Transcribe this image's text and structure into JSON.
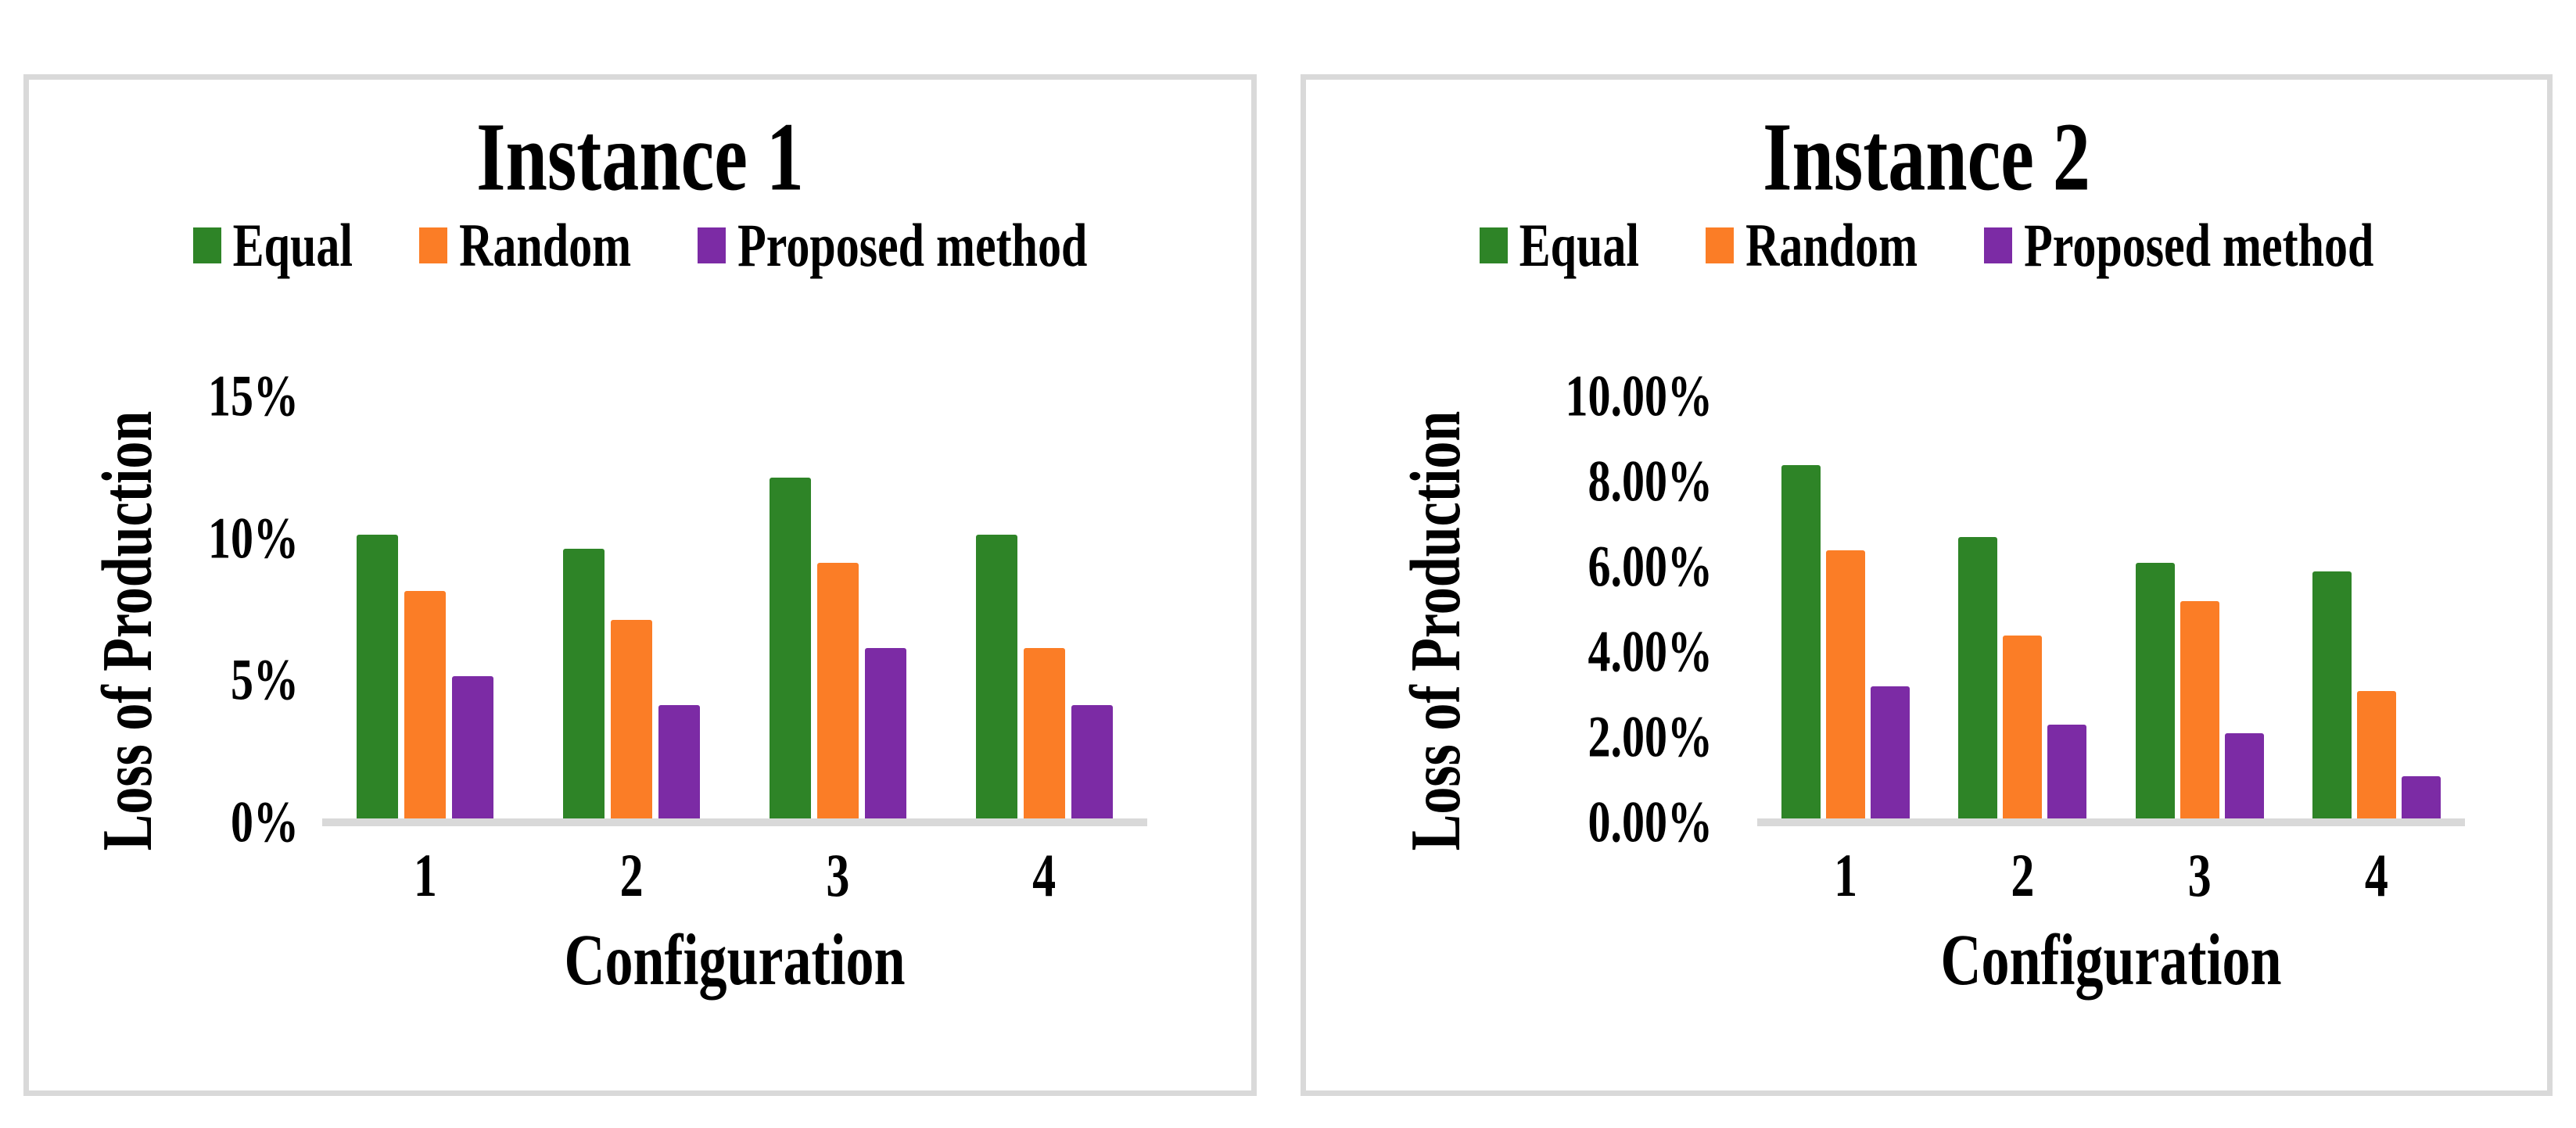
{
  "chart_data": [
    {
      "type": "bar",
      "title": "Instance 1",
      "xlabel": "Configuration",
      "ylabel": "Loss of Production",
      "categories": [
        "1",
        "2",
        "3",
        "4"
      ],
      "series": [
        {
          "name": "Equal",
          "color": "#2E8427",
          "values": [
            10,
            9.5,
            12,
            10
          ]
        },
        {
          "name": "Random",
          "color": "#FB7D26",
          "values": [
            8,
            7,
            9,
            6
          ]
        },
        {
          "name": "Proposed method",
          "color": "#7C2BA5",
          "values": [
            5,
            4,
            6,
            4
          ]
        }
      ],
      "y_max": 15,
      "ylim": [
        0,
        15
      ],
      "y_ticks": [
        {
          "label": "15%",
          "value": 15
        },
        {
          "label": "10%",
          "value": 10
        },
        {
          "label": "5%",
          "value": 5
        },
        {
          "label": "0%",
          "value": 0
        }
      ],
      "grid": "off",
      "legend_position": "top"
    },
    {
      "type": "bar",
      "title": "Instance 2",
      "xlabel": "Configuration",
      "ylabel": "Loss of Production",
      "categories": [
        "1",
        "2",
        "3",
        "4"
      ],
      "series": [
        {
          "name": "Equal",
          "color": "#2E8427",
          "values": [
            8.3,
            6.6,
            6.0,
            5.8
          ]
        },
        {
          "name": "Random",
          "color": "#FB7D26",
          "values": [
            6.3,
            4.3,
            5.1,
            3.0
          ]
        },
        {
          "name": "Proposed method",
          "color": "#7C2BA5",
          "values": [
            3.1,
            2.2,
            2.0,
            1.0
          ]
        }
      ],
      "y_max": 10,
      "ylim": [
        0,
        10
      ],
      "y_ticks": [
        {
          "label": "10.00%",
          "value": 10
        },
        {
          "label": "8.00%",
          "value": 8
        },
        {
          "label": "6.00%",
          "value": 6
        },
        {
          "label": "4.00%",
          "value": 4
        },
        {
          "label": "2.00%",
          "value": 2
        },
        {
          "label": "0.00%",
          "value": 0
        }
      ],
      "grid": "off",
      "legend_position": "top"
    }
  ],
  "colors": {
    "axis_line": "#d9d9d9",
    "panel_border": "#d9d9d9",
    "text": "#000000"
  }
}
